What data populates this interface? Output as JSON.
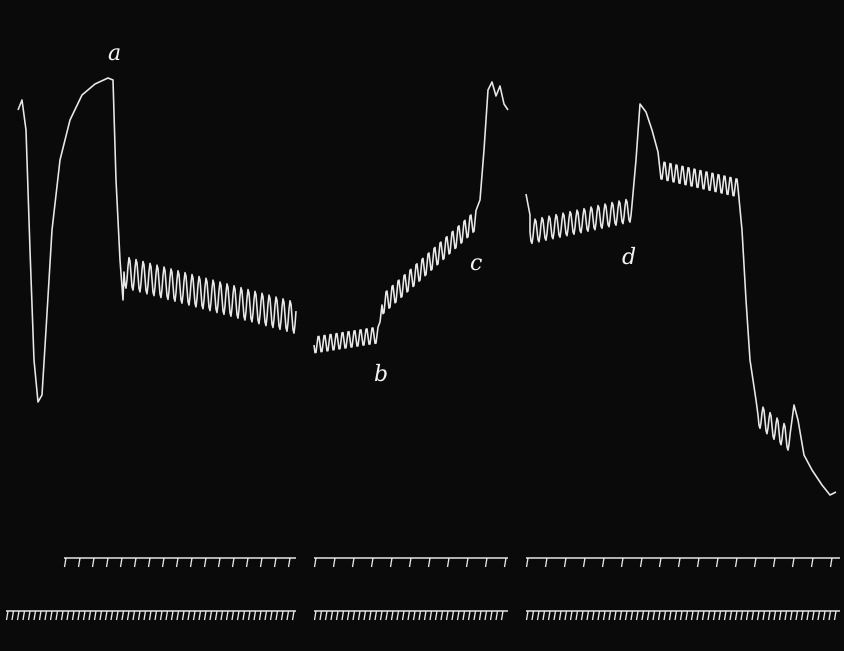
{
  "figure": {
    "background": "#0a0a0a",
    "trace_color": "#e8e8e8",
    "marks": [
      "a",
      "b",
      "c",
      "d"
    ]
  }
}
